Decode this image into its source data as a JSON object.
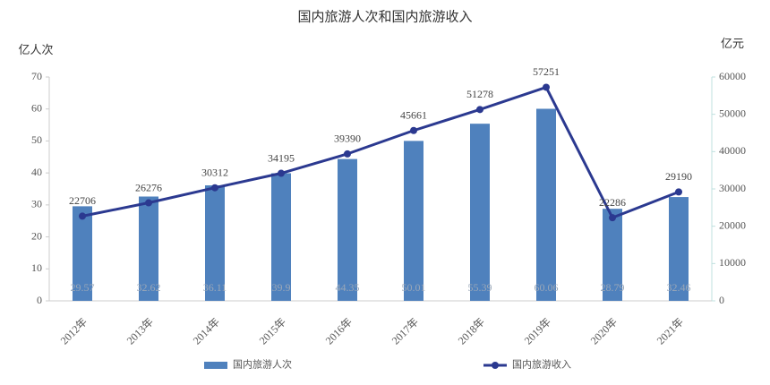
{
  "chart_data": {
    "type": "bar",
    "title": "国内旅游人次和国内旅游收入",
    "y_label": "亿人次",
    "y2_label": "亿元",
    "categories": [
      "2012年",
      "2013年",
      "2014年",
      "2015年",
      "2016年",
      "2017年",
      "2018年",
      "2019年",
      "2020年",
      "2021年"
    ],
    "series": [
      {
        "name": "国内旅游人次",
        "type": "bar",
        "color": "#4f81bd",
        "values": [
          29.57,
          32.62,
          36.11,
          39.9,
          44.35,
          50.01,
          55.39,
          60.06,
          28.79,
          32.46
        ]
      },
      {
        "name": "国内旅游收入",
        "type": "line",
        "axis": "y2",
        "color": "#2b3990",
        "values": [
          22706,
          26276,
          30312,
          34195,
          39390,
          45661,
          51278,
          57251,
          22286,
          29190
        ]
      }
    ],
    "ylim": [
      0,
      70
    ],
    "yticks": [
      0,
      10,
      20,
      30,
      40,
      50,
      60,
      70
    ],
    "y2lim": [
      0,
      60000
    ],
    "y2ticks": [
      0,
      10000,
      20000,
      30000,
      40000,
      50000,
      60000
    ],
    "grid": false
  }
}
